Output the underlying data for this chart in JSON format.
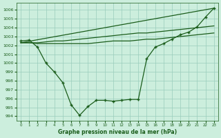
{
  "title": "Graphe pression niveau de la mer (hPa)",
  "background_color": "#cceedd",
  "grid_color": "#99ccbb",
  "line_color": "#1a5c1a",
  "xlim": [
    -0.5,
    23.5
  ],
  "ylim": [
    993.5,
    1006.8
  ],
  "yticks": [
    994,
    995,
    996,
    997,
    998,
    999,
    1000,
    1001,
    1002,
    1003,
    1004,
    1005,
    1006
  ],
  "xticks": [
    0,
    1,
    2,
    3,
    4,
    5,
    6,
    7,
    8,
    9,
    10,
    11,
    12,
    13,
    14,
    15,
    16,
    17,
    18,
    19,
    20,
    21,
    22,
    23
  ],
  "series": [
    {
      "x": [
        0,
        1,
        2,
        3,
        4,
        5,
        6,
        7,
        8,
        9,
        10,
        11,
        12,
        13,
        14,
        15,
        16,
        17,
        18,
        19,
        20,
        21,
        22,
        23
      ],
      "y": [
        1002.5,
        1002.6,
        1001.8,
        1000.0,
        999.0,
        997.8,
        995.3,
        994.1,
        995.1,
        995.8,
        995.8,
        995.7,
        995.8,
        995.9,
        995.9,
        1000.5,
        1001.8,
        1002.2,
        1002.7,
        1003.2,
        1003.5,
        1004.1,
        1005.2,
        1006.2
      ],
      "marker": true
    },
    {
      "x": [
        0,
        1,
        2,
        3,
        4,
        5,
        6,
        7,
        8,
        9,
        10,
        11,
        12,
        13,
        14,
        15,
        16,
        17,
        18,
        19,
        20,
        21,
        22,
        23
      ],
      "y": [
        1002.3,
        1002.3,
        1002.2,
        1002.2,
        1002.2,
        1002.2,
        1002.2,
        1002.2,
        1002.2,
        1002.3,
        1002.4,
        1002.5,
        1002.5,
        1002.5,
        1002.6,
        1002.7,
        1002.7,
        1002.8,
        1002.9,
        1003.0,
        1003.1,
        1003.2,
        1003.3,
        1003.4
      ],
      "marker": false
    },
    {
      "x": [
        0,
        1,
        2,
        3,
        4,
        5,
        6,
        7,
        8,
        9,
        10,
        11,
        12,
        13,
        14,
        15,
        16,
        17,
        18,
        19,
        20,
        21,
        22,
        23
      ],
      "y": [
        1002.3,
        1002.3,
        1002.3,
        1002.4,
        1002.5,
        1002.5,
        1002.6,
        1002.7,
        1002.8,
        1002.9,
        1003.0,
        1003.1,
        1003.2,
        1003.3,
        1003.4,
        1003.4,
        1003.5,
        1003.6,
        1003.7,
        1003.8,
        1003.9,
        1004.0,
        1004.1,
        1004.2
      ],
      "marker": false
    },
    {
      "x": [
        0,
        23
      ],
      "y": [
        1002.3,
        1006.2
      ],
      "marker": false
    }
  ]
}
